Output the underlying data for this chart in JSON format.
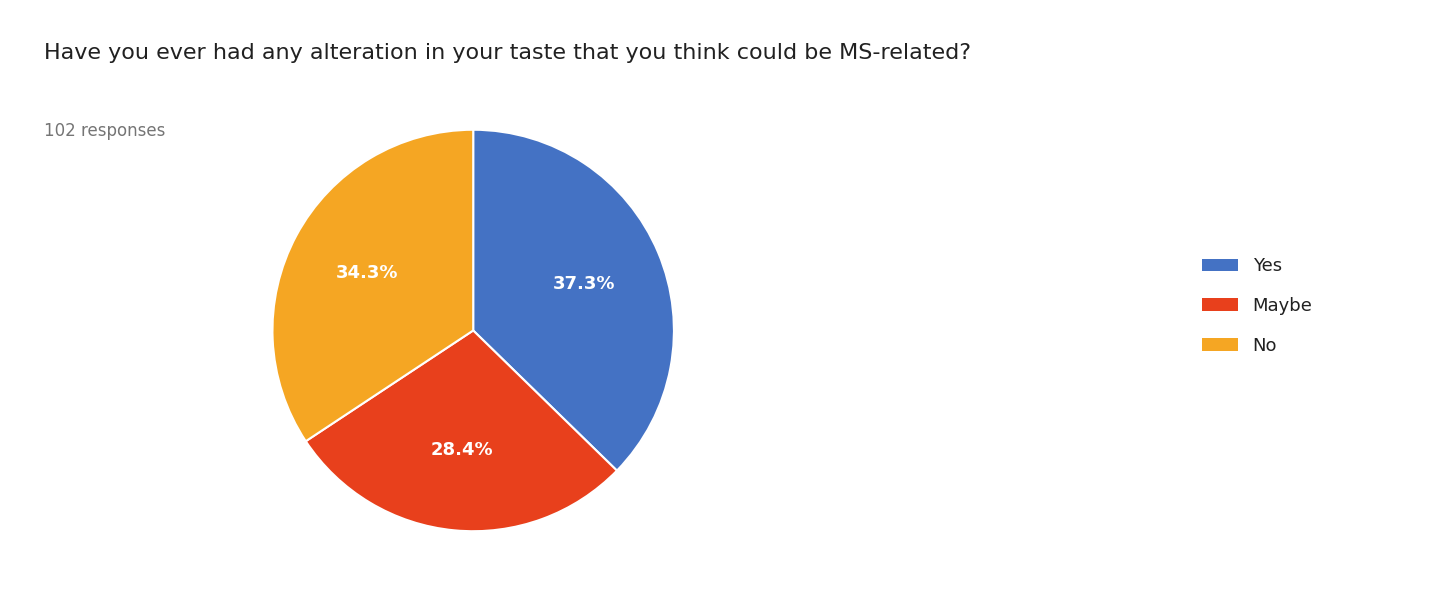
{
  "title": "Have you ever had any alteration in your taste that you think could be MS-related?",
  "subtitle": "102 responses",
  "labels": [
    "Yes",
    "Maybe",
    "No"
  ],
  "values": [
    37.3,
    28.4,
    34.3
  ],
  "colors": [
    "#4472c4",
    "#e8401c",
    "#f5a623"
  ],
  "text_color": "#212121",
  "subtitle_color": "#757575",
  "background_color": "#ffffff",
  "title_fontsize": 16,
  "subtitle_fontsize": 12,
  "label_fontsize": 13,
  "legend_fontsize": 13,
  "startangle": 90
}
